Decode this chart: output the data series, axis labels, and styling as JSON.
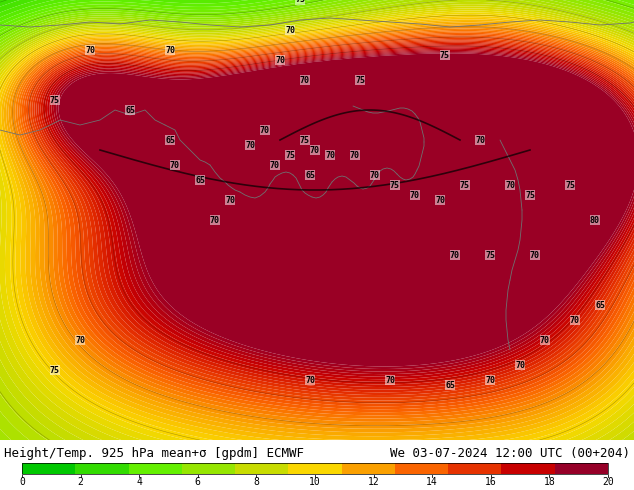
{
  "title_left": "Height/Temp. 925 hPa mean+σ [gpdm] ECMWF",
  "title_right": "We 03-07-2024 12:00 UTC (00+204)",
  "colorbar_ticks": [
    0,
    2,
    4,
    6,
    8,
    10,
    12,
    14,
    16,
    18,
    20
  ],
  "colorbar_colors": [
    "#00c800",
    "#32dc00",
    "#64f000",
    "#96e600",
    "#c8dc00",
    "#fad700",
    "#faa000",
    "#fa6400",
    "#e63200",
    "#c80000",
    "#960028"
  ],
  "font_size_title": 9,
  "colorbar_label_size": 7,
  "warm_blobs": [
    [
      317,
      200,
      8,
      150,
      120
    ],
    [
      200,
      150,
      6,
      100,
      80
    ],
    [
      400,
      130,
      10,
      120,
      70
    ],
    [
      100,
      200,
      4,
      80,
      100
    ],
    [
      550,
      180,
      6,
      100,
      120
    ],
    [
      317,
      280,
      14,
      80,
      60
    ],
    [
      450,
      260,
      10,
      90,
      70
    ],
    [
      250,
      270,
      9,
      70,
      60
    ],
    [
      350,
      310,
      12,
      100,
      70
    ],
    [
      150,
      330,
      8,
      80,
      60
    ],
    [
      500,
      330,
      12,
      100,
      80
    ],
    [
      80,
      350,
      10,
      60,
      50
    ],
    [
      580,
      290,
      8,
      80,
      70
    ]
  ],
  "cool_blobs": [
    [
      317,
      430,
      -3,
      200,
      40
    ],
    [
      50,
      430,
      -2,
      100,
      60
    ],
    [
      580,
      430,
      -2,
      80,
      60
    ],
    [
      317,
      0,
      4,
      300,
      120
    ],
    [
      0,
      220,
      2,
      100,
      150
    ],
    [
      634,
      220,
      2,
      100,
      150
    ]
  ],
  "label_positions": [
    [
      80,
      100,
      "70"
    ],
    [
      55,
      70,
      "75"
    ],
    [
      90,
      390,
      "70"
    ],
    [
      55,
      340,
      "75"
    ],
    [
      130,
      330,
      "65"
    ],
    [
      170,
      300,
      "65"
    ],
    [
      175,
      275,
      "70"
    ],
    [
      200,
      260,
      "65"
    ],
    [
      215,
      220,
      "70"
    ],
    [
      230,
      240,
      "70"
    ],
    [
      250,
      295,
      "70"
    ],
    [
      265,
      310,
      "70"
    ],
    [
      275,
      275,
      "70"
    ],
    [
      290,
      285,
      "75"
    ],
    [
      305,
      300,
      "75"
    ],
    [
      315,
      290,
      "70"
    ],
    [
      330,
      285,
      "70"
    ],
    [
      310,
      265,
      "65"
    ],
    [
      355,
      285,
      "70"
    ],
    [
      375,
      265,
      "70"
    ],
    [
      395,
      255,
      "75"
    ],
    [
      415,
      245,
      "70"
    ],
    [
      440,
      240,
      "70"
    ],
    [
      465,
      255,
      "75"
    ],
    [
      480,
      300,
      "70"
    ],
    [
      510,
      255,
      "70"
    ],
    [
      530,
      245,
      "75"
    ],
    [
      570,
      255,
      "75"
    ],
    [
      595,
      220,
      "80"
    ],
    [
      490,
      185,
      "75"
    ],
    [
      455,
      185,
      "70"
    ],
    [
      535,
      185,
      "70"
    ],
    [
      310,
      60,
      "70"
    ],
    [
      390,
      60,
      "70"
    ],
    [
      450,
      55,
      "65"
    ],
    [
      490,
      60,
      "70"
    ],
    [
      520,
      75,
      "70"
    ],
    [
      545,
      100,
      "70"
    ],
    [
      575,
      120,
      "70"
    ],
    [
      600,
      135,
      "65"
    ],
    [
      280,
      380,
      "70"
    ],
    [
      305,
      360,
      "70"
    ],
    [
      170,
      390,
      "70"
    ],
    [
      360,
      360,
      "75"
    ],
    [
      445,
      385,
      "75"
    ],
    [
      300,
      440,
      "75"
    ],
    [
      290,
      410,
      "70"
    ]
  ]
}
